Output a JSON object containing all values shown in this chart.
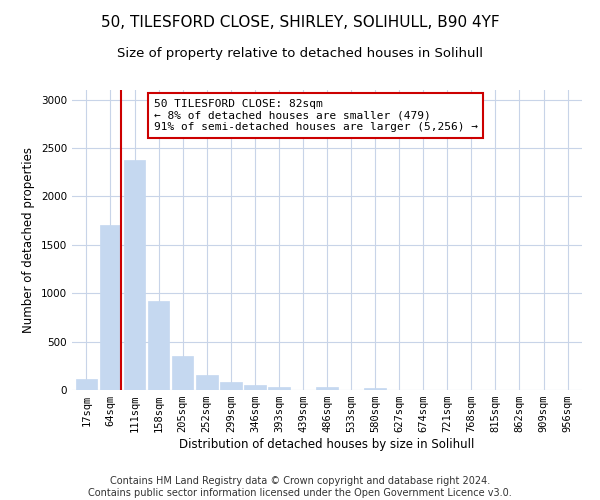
{
  "title1": "50, TILESFORD CLOSE, SHIRLEY, SOLIHULL, B90 4YF",
  "title2": "Size of property relative to detached houses in Solihull",
  "xlabel": "Distribution of detached houses by size in Solihull",
  "ylabel": "Number of detached properties",
  "categories": [
    "17sqm",
    "64sqm",
    "111sqm",
    "158sqm",
    "205sqm",
    "252sqm",
    "299sqm",
    "346sqm",
    "393sqm",
    "439sqm",
    "486sqm",
    "533sqm",
    "580sqm",
    "627sqm",
    "674sqm",
    "721sqm",
    "768sqm",
    "815sqm",
    "862sqm",
    "909sqm",
    "956sqm"
  ],
  "values": [
    115,
    1700,
    2380,
    920,
    350,
    155,
    80,
    55,
    35,
    0,
    30,
    0,
    25,
    0,
    0,
    0,
    0,
    0,
    0,
    0,
    0
  ],
  "bar_color": "#c5d8f0",
  "bar_edgecolor": "#c5d8f0",
  "ylim": [
    0,
    3100
  ],
  "yticks": [
    0,
    500,
    1000,
    1500,
    2000,
    2500,
    3000
  ],
  "vline_color": "#cc0000",
  "annotation_text": "50 TILESFORD CLOSE: 82sqm\n← 8% of detached houses are smaller (479)\n91% of semi-detached houses are larger (5,256) →",
  "annotation_box_edgecolor": "#cc0000",
  "footer1": "Contains HM Land Registry data © Crown copyright and database right 2024.",
  "footer2": "Contains public sector information licensed under the Open Government Licence v3.0.",
  "bg_color": "#ffffff",
  "grid_color": "#c8d4e8",
  "title_fontsize": 11,
  "subtitle_fontsize": 9.5,
  "axis_label_fontsize": 8.5,
  "tick_fontsize": 7.5,
  "annotation_fontsize": 8,
  "footer_fontsize": 7
}
